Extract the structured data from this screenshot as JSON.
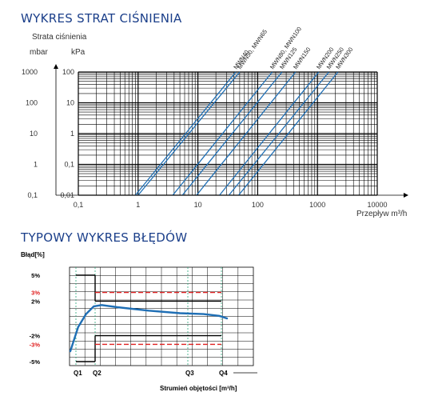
{
  "chart_data": [
    {
      "type": "line",
      "title": "WYKRES STRAT CIŚNIENIA",
      "ylabel": "Strata ciśnienia",
      "ylabel_units": [
        "mbar",
        "kPa"
      ],
      "xlabel": "Przepływ m³/h",
      "x_scale": "log",
      "y_scale": "log",
      "xlim": [
        0.1,
        10000
      ],
      "ylim": [
        0.01,
        100
      ],
      "x_ticks": [
        "0,1",
        "1",
        "10",
        "100",
        "1000",
        "10000"
      ],
      "y_ticks_kpa": [
        "0,01",
        "0,1",
        "1",
        "10",
        "100"
      ],
      "y_ticks_mbar": [
        "0,1",
        "1",
        "10",
        "100",
        "1000"
      ],
      "series": [
        {
          "name": "MWN40",
          "x": [
            0.9,
            43
          ],
          "y": [
            0.01,
            100
          ]
        },
        {
          "name": "MWN50, MWN65",
          "x": [
            1.0,
            50
          ],
          "y": [
            0.01,
            100
          ]
        },
        {
          "name": "MWN80, MWN100",
          "x": [
            3.8,
            175
          ],
          "y": [
            0.01,
            100
          ]
        },
        {
          "name": "MWN125",
          "x": [
            5.5,
            255
          ],
          "y": [
            0.01,
            100
          ]
        },
        {
          "name": "MWN150",
          "x": [
            9.5,
            430
          ],
          "y": [
            0.01,
            100
          ]
        },
        {
          "name": "MWN200",
          "x": [
            23,
            1050
          ],
          "y": [
            0.01,
            100
          ]
        },
        {
          "name": "MWN250",
          "x": [
            33,
            1550
          ],
          "y": [
            0.01,
            100
          ]
        },
        {
          "name": "MWN300",
          "x": [
            48,
            2200
          ],
          "y": [
            0.01,
            100
          ]
        }
      ]
    },
    {
      "type": "line",
      "title": "TYPOWY WYKRES BŁĘDÓW",
      "ylabel": "Błąd[%]",
      "xlabel": "Strumień objętości [m³/h]",
      "y_ticks": [
        "5%",
        "3%",
        "2%",
        "-2%",
        "-3%",
        "-5%"
      ],
      "ylim": [
        -6,
        6
      ],
      "x_ticks": [
        "Q1",
        "Q2",
        "Q3",
        "Q4"
      ],
      "limits": [
        {
          "name": "±5% (Q1–Q2)",
          "values": [
            5,
            -5
          ]
        },
        {
          "name": "±2% (Q2–Q4)",
          "values": [
            2,
            -2
          ]
        },
        {
          "name": "±3%",
          "values": [
            3,
            -3
          ],
          "color": "#e02020",
          "dashed": true
        }
      ],
      "error_curve": {
        "x_rel": [
          0.0,
          0.05,
          0.1,
          0.15,
          0.2,
          0.3,
          0.5,
          0.7,
          0.85,
          0.95,
          1.0
        ],
        "y": [
          -3.8,
          -1.0,
          0.5,
          1.4,
          1.55,
          1.3,
          0.9,
          0.6,
          0.5,
          0.3,
          0.0
        ]
      }
    }
  ],
  "colors": {
    "title": "#1b3f8a",
    "curve": "#1f6fb5",
    "limit_red": "#e02020",
    "q_line": "#2aa87a"
  }
}
